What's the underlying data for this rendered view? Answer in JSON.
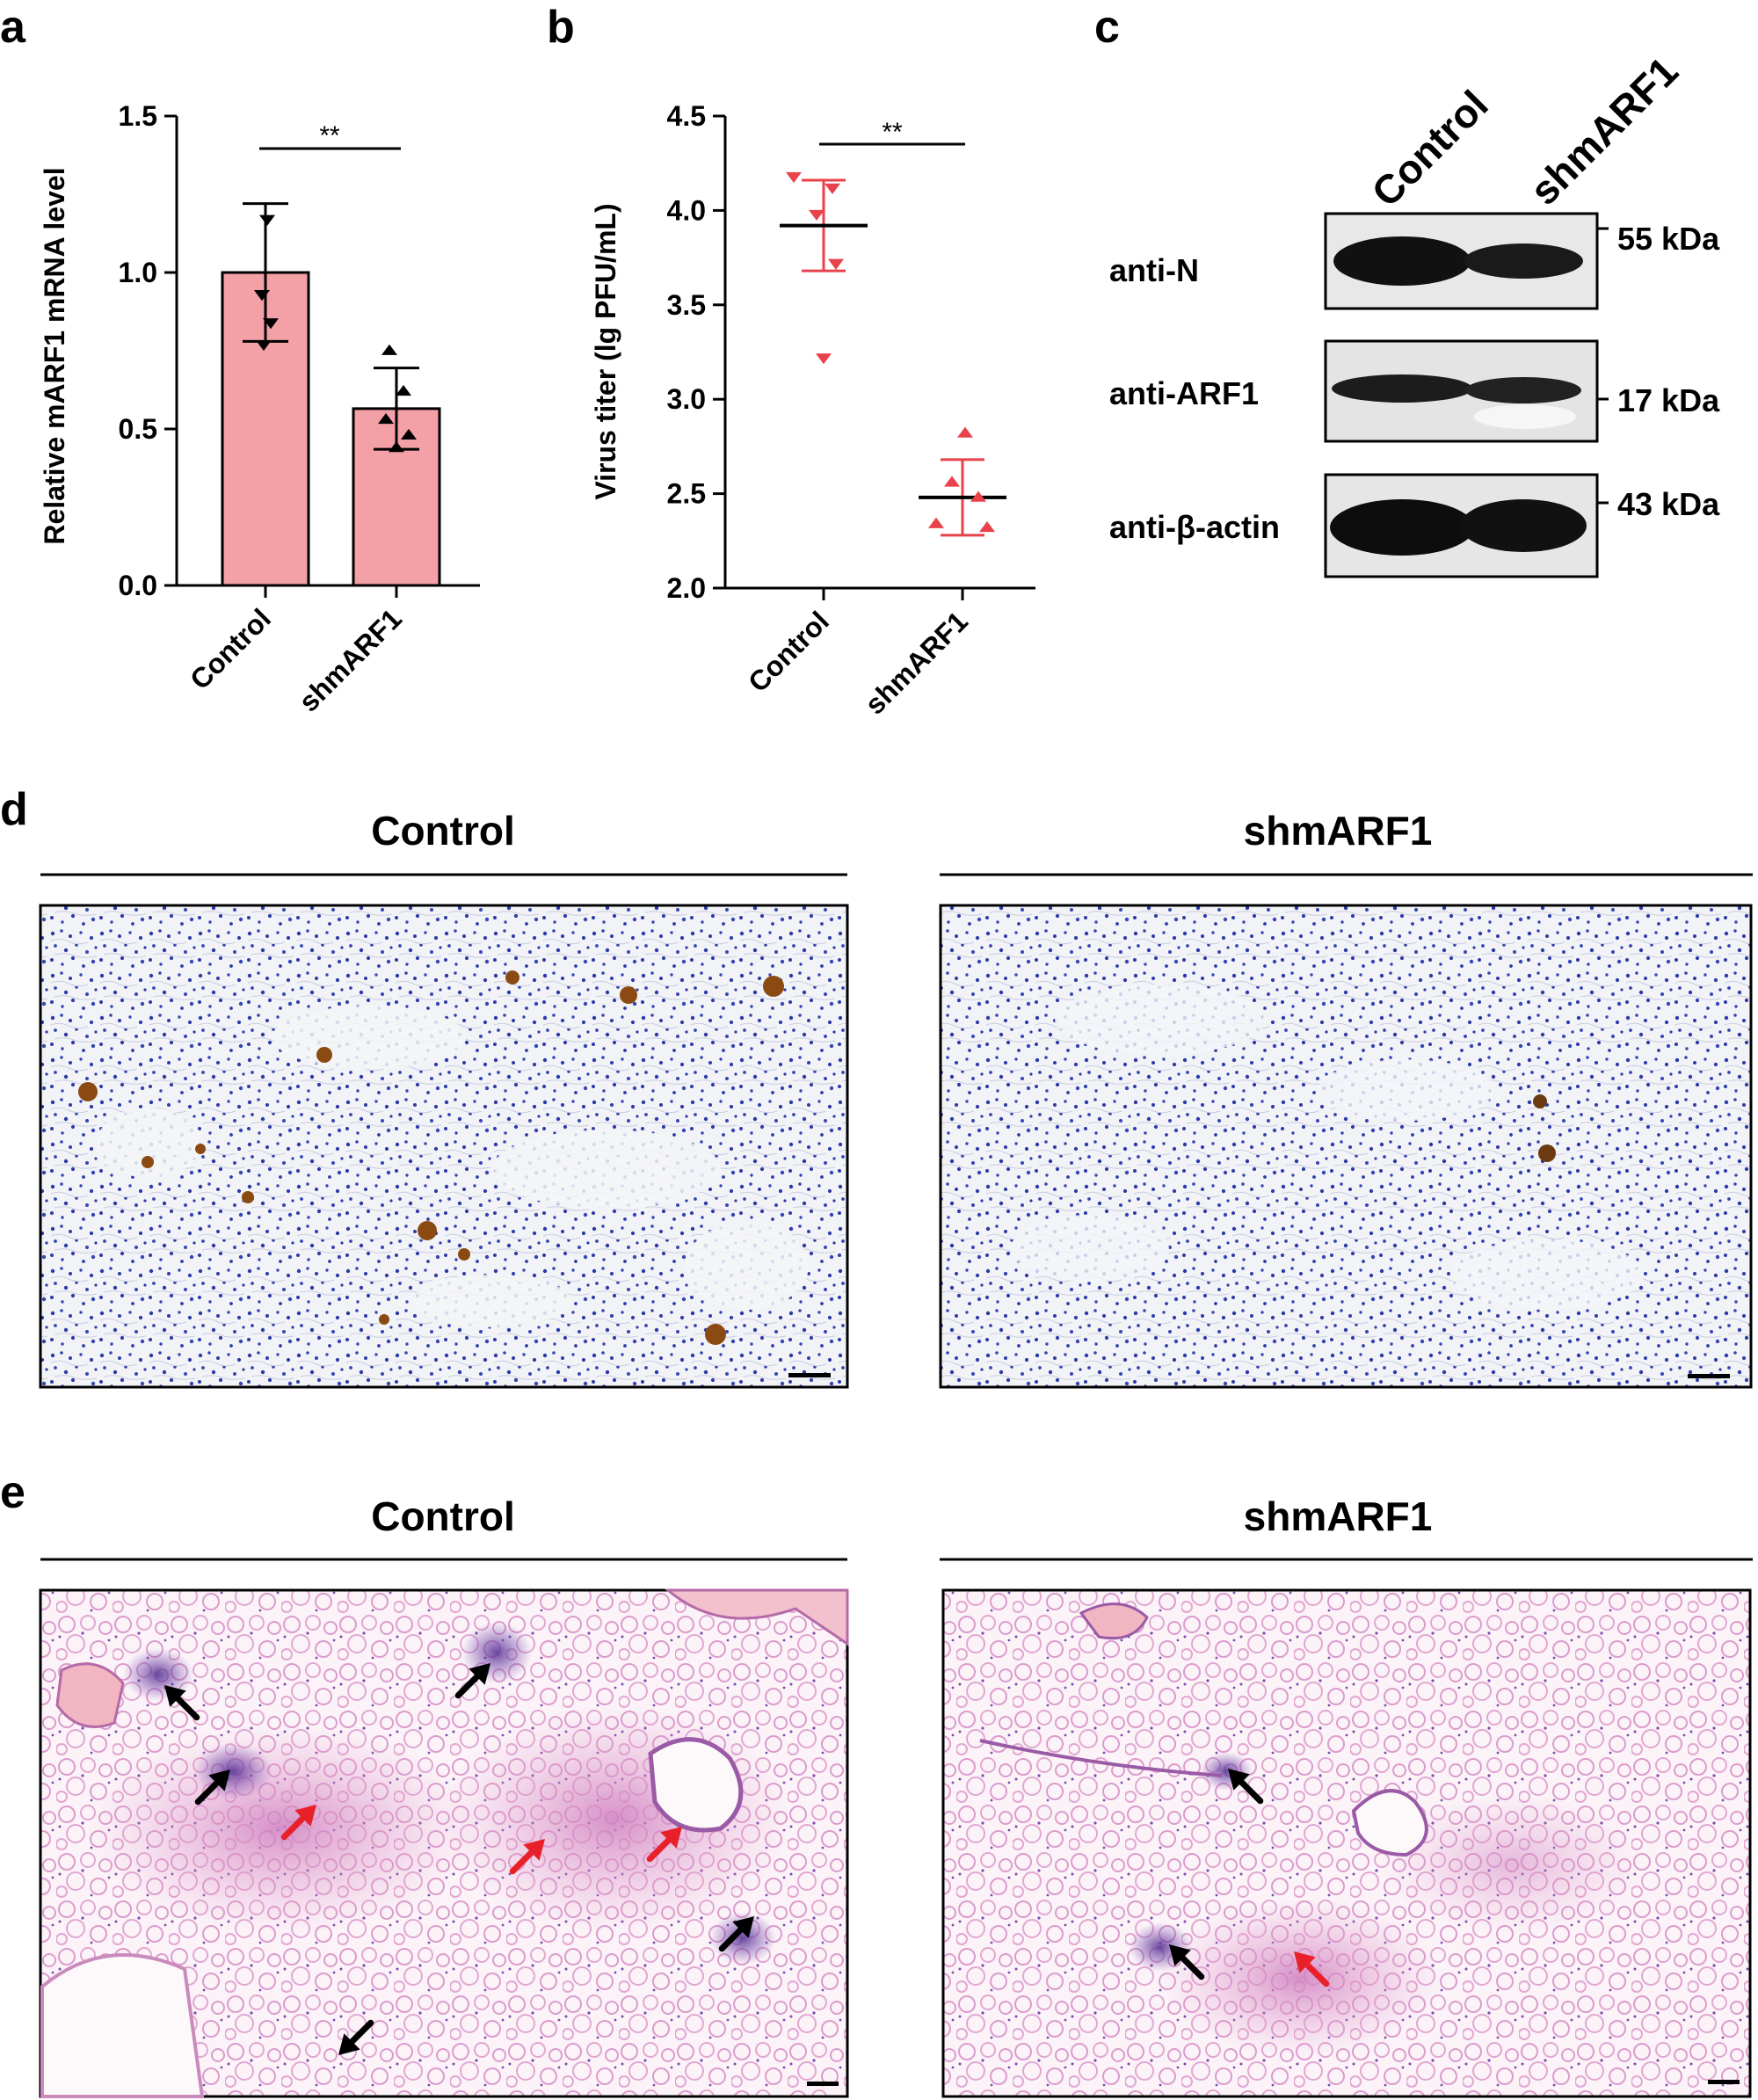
{
  "panel_labels": {
    "a": "a",
    "b": "b",
    "c": "c",
    "d": "d",
    "e": "e"
  },
  "chart_data": [
    {
      "type": "bar",
      "panel": "a",
      "categories": [
        "Control",
        "shmARF1"
      ],
      "values": [
        1.0,
        0.565
      ],
      "error": [
        0.22,
        0.13
      ],
      "points": [
        [
          1.17,
          0.93,
          0.84,
          0.77
        ],
        [
          0.75,
          0.62,
          0.53,
          0.48,
          0.44
        ]
      ],
      "point_markers": [
        "triangle-down",
        "triangle-up"
      ],
      "colors": {
        "bar": "#f4a0a7",
        "point": "#000000"
      },
      "xlabel": "",
      "ylabel": "Relative mARF1 mRNA level",
      "ylim": [
        0,
        1.5
      ],
      "yticks": [
        "0.0",
        "0.5",
        "1.0",
        "1.5"
      ],
      "significance": "**"
    },
    {
      "type": "scatter",
      "panel": "b",
      "categories": [
        "Control",
        "shmARF1"
      ],
      "means": [
        3.92,
        2.48
      ],
      "sd": [
        0.24,
        0.2
      ],
      "points": [
        [
          4.18,
          4.12,
          3.98,
          3.72,
          3.22
        ],
        [
          2.82,
          2.56,
          2.48,
          2.34,
          2.32
        ]
      ],
      "point_markers": [
        "triangle-down",
        "triangle-up"
      ],
      "colors": {
        "point": "#e8424a",
        "mean_line": "#000000"
      },
      "xlabel": "",
      "ylabel": "Virus titer (lg PFU/mL)",
      "ylim": [
        2.0,
        4.5
      ],
      "yticks": [
        "2.0",
        "2.5",
        "3.0",
        "3.5",
        "4.0",
        "4.5"
      ],
      "significance": "**"
    }
  ],
  "blot": {
    "columns": [
      "Control",
      "shmARF1"
    ],
    "rows": [
      {
        "label": "anti-N",
        "kda": "55 kDa"
      },
      {
        "label": "anti-ARF1",
        "kda": "17 kDa"
      },
      {
        "label": "anti-β-actin",
        "kda": "43 kDa"
      }
    ]
  },
  "panel_d": {
    "left_title": "Control",
    "right_title": "shmARF1"
  },
  "panel_e": {
    "left_title": "Control",
    "right_title": "shmARF1"
  },
  "colors": {
    "ihc_nuclei": "#2b3aa8",
    "ihc_stain": "#8a4a12",
    "he_pink": "#e8a9cf",
    "he_purple": "#6a3fa0",
    "arrow_red": "#e8202a"
  }
}
